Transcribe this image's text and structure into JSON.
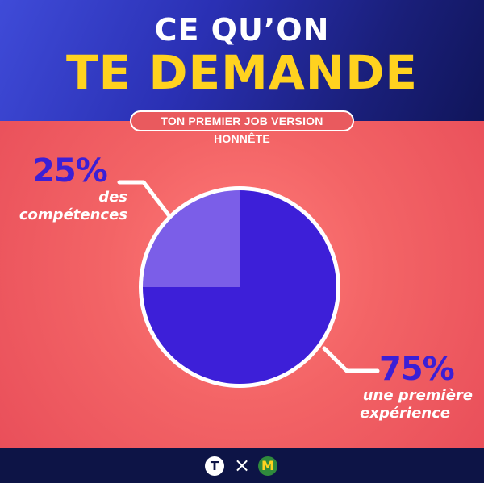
{
  "header": {
    "title_line1": "CE QU’ON",
    "title_line2": "TE DEMANDE"
  },
  "subtitle": "TON PREMIER JOB VERSION HONNÊTE",
  "chart_data": {
    "type": "pie",
    "title": "CE QU’ON TE DEMANDE",
    "slices": [
      {
        "label": "des compétences",
        "value_label": "25%",
        "value": 25,
        "color": "#7b5ee8"
      },
      {
        "label": "une première expérience",
        "value_label": "75%",
        "value": 75,
        "color": "#3d1fd8"
      }
    ],
    "start": "top, clockwise from the large slice",
    "legend": "none"
  },
  "labels": {
    "small": {
      "pct": "25%",
      "line1": "des",
      "line2": "compétences"
    },
    "large": {
      "pct": "75%",
      "line1": "une première",
      "line2": "expérience"
    }
  },
  "footer": {
    "logo_left": "T",
    "separator": "×",
    "logo_right": "M"
  },
  "colors": {
    "accent_yellow": "#ffd21f",
    "background_red": "#f36466",
    "header_blue": "#2a30b4",
    "pie_dark": "#3d1fd8",
    "pie_light": "#7b5ee8"
  }
}
